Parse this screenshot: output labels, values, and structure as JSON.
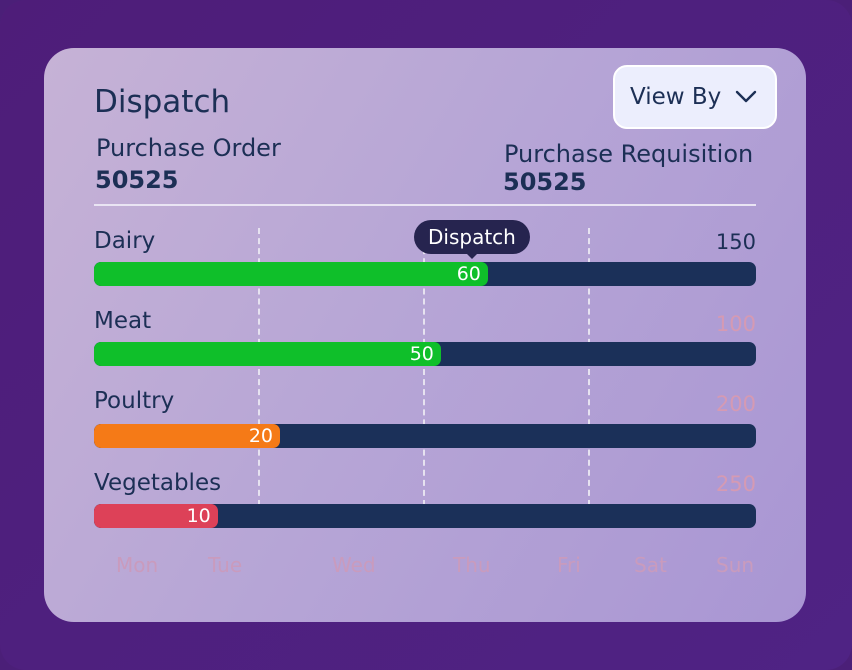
{
  "widget": {
    "title": "Dispatch",
    "view_by_label": "View By",
    "purchase_order": {
      "label": "Purchase Order",
      "value": "50525"
    },
    "purchase_requisition": {
      "label": "Purchase Requisition",
      "value": "50525"
    },
    "tooltip": "Dispatch"
  },
  "rows": [
    {
      "label": "Dairy",
      "value": "60",
      "max": "150",
      "fraction": 0.595,
      "color": "#0fbf2a",
      "max_color": "#1c2f55"
    },
    {
      "label": "Meat",
      "value": "50",
      "max": "100",
      "fraction": 0.524,
      "color": "#0fbf2a",
      "max_color": "#d59ab3"
    },
    {
      "label": "Poultry",
      "value": "20",
      "max": "200",
      "fraction": 0.281,
      "color": "#f57a17",
      "max_color": "#d59ab3"
    },
    {
      "label": "Vegetables",
      "value": "10",
      "max": "250",
      "fraction": 0.187,
      "color": "#dd4158",
      "max_color": "#d59ab3"
    }
  ],
  "days": [
    "Mon",
    "Tue",
    "Wed",
    "Thu",
    "Fri",
    "Sat",
    "Sun"
  ],
  "colors": {
    "track": "#1b3059",
    "text": "#1c2f55",
    "tooltip_bg": "#26244f"
  }
}
